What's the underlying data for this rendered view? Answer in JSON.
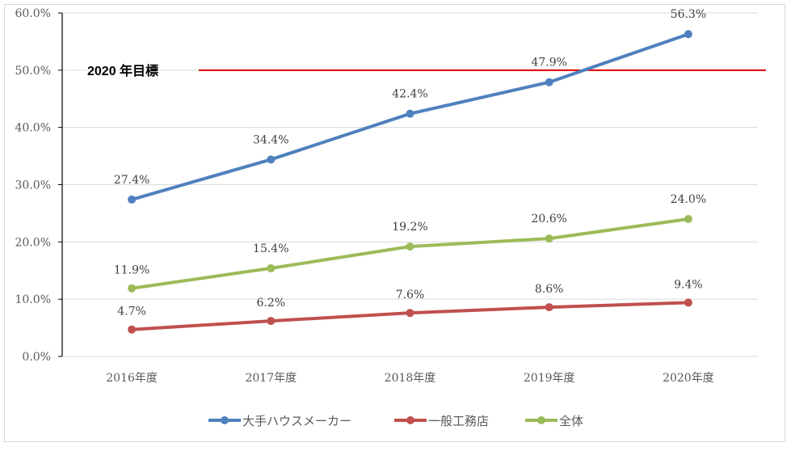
{
  "chart_data": {
    "type": "line",
    "title": "",
    "xlabel": "",
    "ylabel": "",
    "categories": [
      "2016年度",
      "2017年度",
      "2018年度",
      "2019年度",
      "2020年度"
    ],
    "ylim": [
      0,
      60
    ],
    "yticks": [
      "0.0%",
      "10.0%",
      "20.0%",
      "30.0%",
      "40.0%",
      "50.0%",
      "60.0%"
    ],
    "grid": true,
    "legend_position": "bottom",
    "series": [
      {
        "name": "大手ハウスメーカー",
        "color": "#4f81bd",
        "values": [
          27.4,
          34.4,
          42.4,
          47.9,
          56.3
        ],
        "labels": [
          "27.4%",
          "34.4%",
          "42.4%",
          "47.9%",
          "56.3%"
        ]
      },
      {
        "name": "一般工務店",
        "color": "#c0504d",
        "values": [
          4.7,
          6.2,
          7.6,
          8.6,
          9.4
        ],
        "labels": [
          "4.7%",
          "6.2%",
          "7.6%",
          "8.6%",
          "9.4%"
        ]
      },
      {
        "name": "全体",
        "color": "#9bbb59",
        "values": [
          11.9,
          15.4,
          19.2,
          20.6,
          24.0
        ],
        "labels": [
          "11.9%",
          "15.4%",
          "19.2%",
          "20.6%",
          "24.0%"
        ]
      }
    ],
    "target_line": {
      "label": "2020 年目標",
      "value": 50,
      "color": "#e00000"
    }
  }
}
